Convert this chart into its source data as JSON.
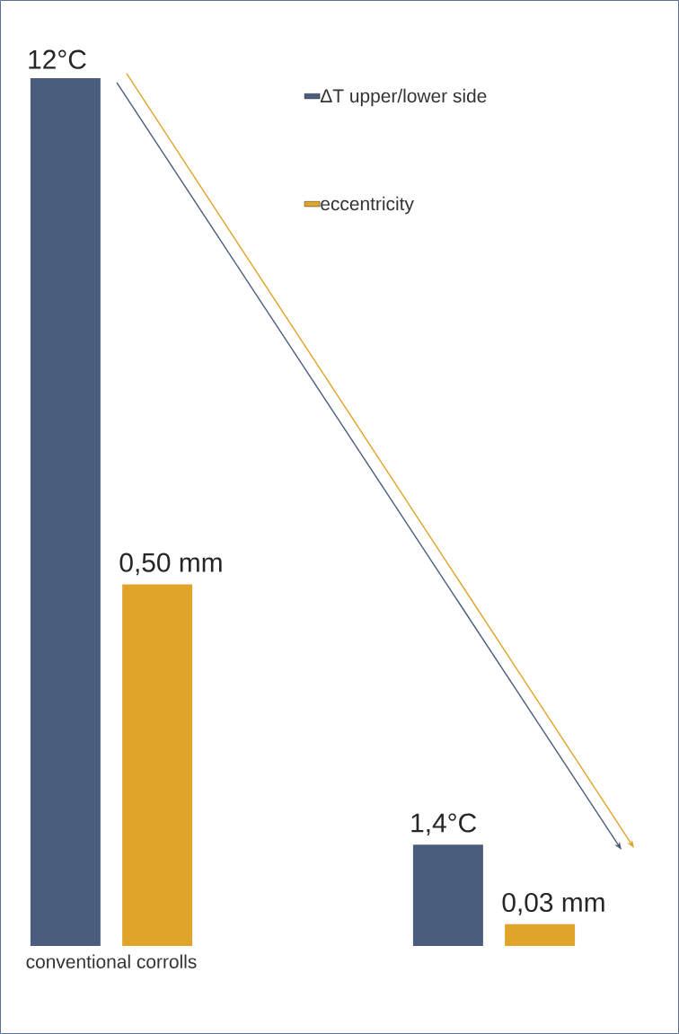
{
  "chart_data": {
    "type": "bar",
    "categories": [
      "conventional corrolls",
      null
    ],
    "series": [
      {
        "name": "ΔT upper/lower side",
        "color": "#4a5d7c",
        "values": [
          12,
          1.4
        ],
        "value_labels": [
          "12°C",
          "1,4°C"
        ]
      },
      {
        "name": "eccentricity",
        "color": "#e0a428",
        "values": [
          0.5,
          0.03
        ],
        "value_labels": [
          "0,50 mm",
          "0,03 mm"
        ],
        "axis": "y2"
      }
    ],
    "ylim": [
      0,
      12
    ],
    "y2lim": [
      0,
      1.2
    ],
    "tick_labels": "x",
    "legend": "top right"
  }
}
